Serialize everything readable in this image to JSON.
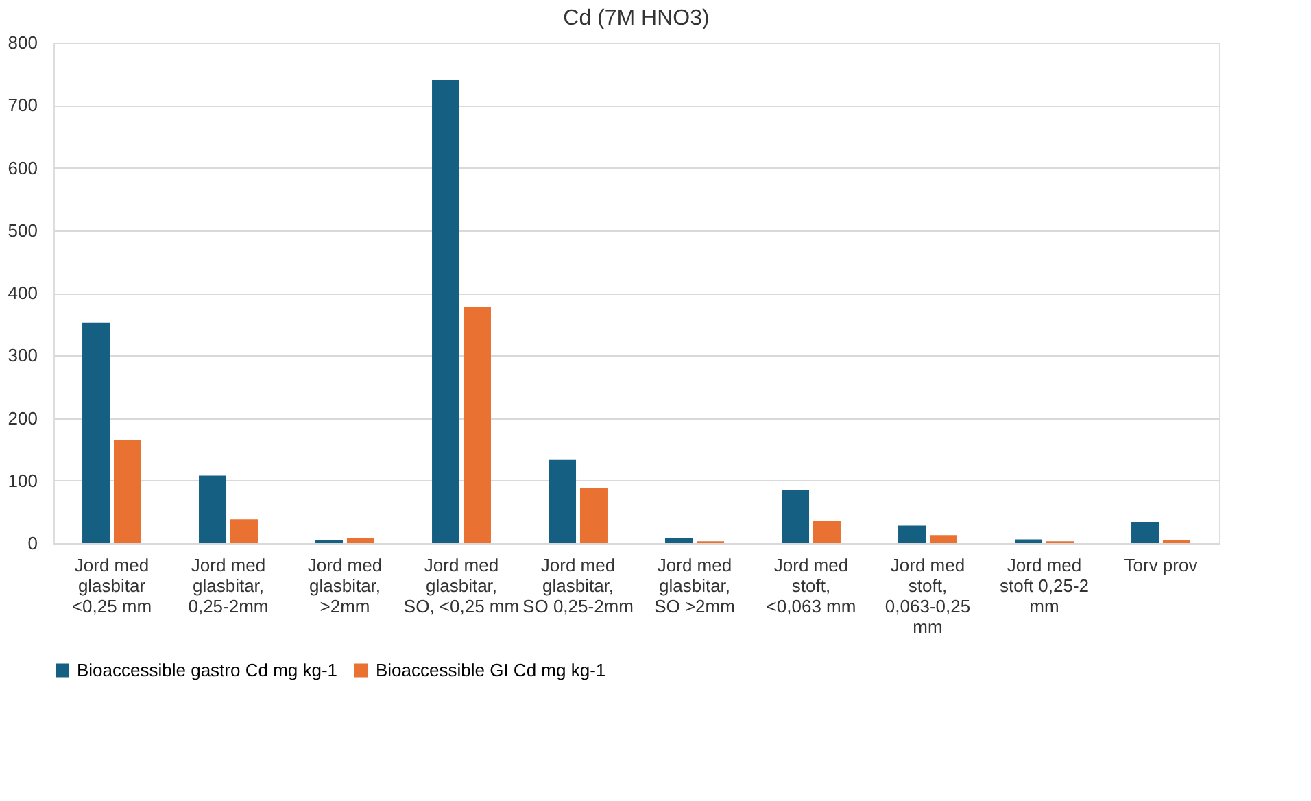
{
  "chart_data": {
    "type": "bar",
    "title": "Cd (7M HNO3)",
    "categories": [
      "Jord med glasbitar <0,25 mm",
      "Jord med glasbitar, 0,25-2mm",
      "Jord med glasbitar, >2mm",
      "Jord med glasbitar, SO, <0,25 mm",
      "Jord med glasbitar, SO 0,25-2mm",
      "Jord med glasbitar, SO >2mm",
      "Jord med stoft, <0,063 mm",
      "Jord med stoft, 0,063-0,25 mm",
      "Jord med stoft 0,25-2 mm",
      "Torv prov"
    ],
    "series": [
      {
        "name": "Bioaccessible gastro Cd mg kg-1",
        "color": "#156082",
        "values": [
          352,
          108,
          5,
          740,
          133,
          8,
          85,
          28,
          6,
          34
        ]
      },
      {
        "name": "Bioaccessible GI Cd mg kg-1",
        "color": "#e97132",
        "values": [
          165,
          38,
          8,
          378,
          88,
          3,
          35,
          13,
          3,
          5
        ]
      }
    ],
    "ylim": [
      0,
      800
    ],
    "yticks": [
      0,
      100,
      200,
      300,
      400,
      500,
      600,
      700,
      800
    ],
    "grid": "y",
    "legend": "bottom"
  }
}
